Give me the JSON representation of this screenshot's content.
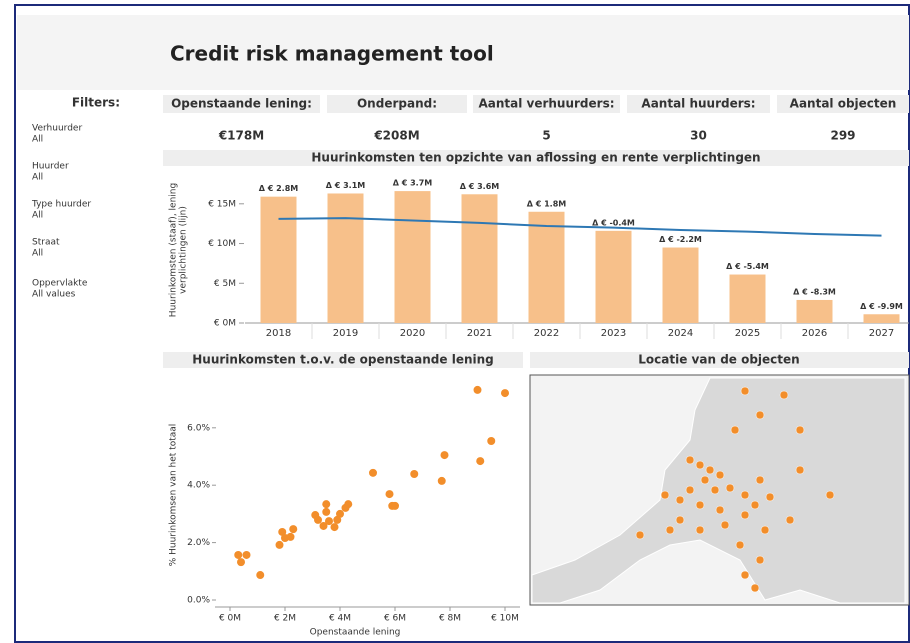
{
  "header": {
    "title": "Credit risk management tool"
  },
  "filters": {
    "title": "Filters:",
    "items": [
      {
        "label": "Verhuurder",
        "value": "All"
      },
      {
        "label": "Huurder",
        "value": "All"
      },
      {
        "label": "Type huurder",
        "value": "All"
      },
      {
        "label": "Straat",
        "value": "All"
      },
      {
        "label": "Oppervlakte",
        "value": "All values"
      }
    ]
  },
  "kpis": [
    {
      "label": "Openstaande lening:",
      "value": "€178M"
    },
    {
      "label": "Onderpand:",
      "value": "€208M"
    },
    {
      "label": "Aantal verhuurders:",
      "value": "5"
    },
    {
      "label": "Aantal huurders:",
      "value": "30"
    },
    {
      "label": "Aantal objecten",
      "value": "299"
    }
  ],
  "chart_data": [
    {
      "type": "bar",
      "title": "Huurinkomsten ten opzichte van aflossing en rente verplichtingen",
      "ylabel_lines": [
        "Huurinkomsten (staaf), lening",
        "verplichtingen (lijn)"
      ],
      "categories": [
        "2018",
        "2019",
        "2020",
        "2021",
        "2022",
        "2023",
        "2024",
        "2025",
        "2026",
        "2027"
      ],
      "values": [
        15.9,
        16.3,
        16.6,
        16.2,
        14.0,
        11.6,
        9.5,
        6.1,
        2.9,
        1.1
      ],
      "delta_labels": [
        "Δ € 2.8M",
        "Δ € 3.1M",
        "Δ € 3.7M",
        "Δ € 3.6M",
        "Δ € 1.8M",
        "Δ € -0.4M",
        "Δ € -2.2M",
        "Δ € -5.4M",
        "Δ € -8.3M",
        "Δ € -9.9M"
      ],
      "color": "#f7c08a",
      "line_values": [
        13.1,
        13.2,
        12.9,
        12.6,
        12.2,
        12.0,
        11.7,
        11.5,
        11.2,
        11.0
      ],
      "line_color": "#2e78b4",
      "ylim": [
        0,
        18.5
      ],
      "yticks": [
        {
          "value": 0,
          "label": "€ 0M"
        },
        {
          "value": 5,
          "label": "€ 5M"
        },
        {
          "value": 10,
          "label": "€ 10M"
        },
        {
          "value": 15,
          "label": "€ 15M"
        }
      ]
    },
    {
      "type": "scatter",
      "title": "Huurinkomsten t.o.v. de openstaande lening",
      "xlabel": "Openstaande lening",
      "ylabel": "% Huurinkomsen van het totaal",
      "x": [
        0.3,
        0.4,
        0.6,
        1.1,
        1.8,
        1.9,
        2.0,
        2.2,
        2.3,
        3.1,
        3.2,
        3.4,
        3.5,
        3.5,
        3.6,
        3.8,
        3.9,
        4.0,
        4.2,
        4.3,
        5.2,
        5.8,
        5.9,
        6.0,
        6.7,
        7.7,
        7.8,
        9.0,
        9.1,
        9.5,
        10.0
      ],
      "values": [
        1.57,
        1.32,
        1.57,
        0.87,
        1.92,
        2.37,
        2.16,
        2.2,
        2.47,
        2.96,
        2.79,
        2.58,
        3.34,
        3.07,
        2.75,
        2.54,
        2.79,
        3.0,
        3.21,
        3.34,
        4.43,
        3.69,
        3.28,
        3.28,
        4.39,
        4.15,
        5.05,
        7.32,
        4.84,
        5.54,
        7.21
      ],
      "color": "#f28e2b",
      "xlim": [
        0,
        10.5
      ],
      "ylim": [
        0,
        7.5
      ],
      "xticks": [
        {
          "value": 0,
          "label": "€ 0M"
        },
        {
          "value": 2,
          "label": "€ 2M"
        },
        {
          "value": 4,
          "label": "€ 4M"
        },
        {
          "value": 6,
          "label": "€ 6M"
        },
        {
          "value": 8,
          "label": "€ 8M"
        },
        {
          "value": 10,
          "label": "€ 10M"
        }
      ],
      "yticks": [
        {
          "value": 0,
          "label": "0.0%"
        },
        {
          "value": 2,
          "label": "2.0%"
        },
        {
          "value": 4,
          "label": "4.0%"
        },
        {
          "value": 6,
          "label": "6.0%"
        }
      ]
    }
  ],
  "map": {
    "title": "Locatie van de objecten"
  }
}
